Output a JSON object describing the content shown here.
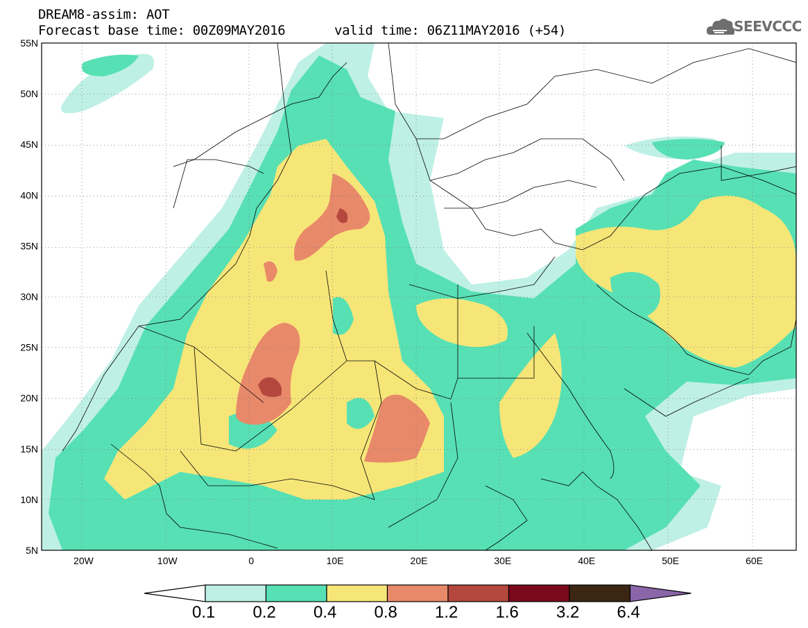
{
  "header": {
    "title": "DREAM8-assim: AOT",
    "base_time": "Forecast base time: 00Z09MAY2016",
    "valid_time": "valid time: 06Z11MAY2016 (+54)",
    "logo_text": "SEEVCCC"
  },
  "map": {
    "lat_labels": [
      "55N",
      "50N",
      "45N",
      "40N",
      "35N",
      "30N",
      "25N",
      "20N",
      "15N",
      "10N",
      "5N"
    ],
    "lon_labels": [
      "20W",
      "10W",
      "0",
      "10E",
      "20E",
      "30E",
      "40E",
      "50E",
      "60E"
    ],
    "lon_range": [
      -25,
      65
    ],
    "lat_range": [
      5,
      55
    ]
  },
  "colorbar": {
    "labels": [
      "0.1",
      "0.2",
      "0.4",
      "0.8",
      "1.2",
      "1.6",
      "3.2",
      "6.4"
    ],
    "colors": [
      "#ffffff",
      "#bff0e5",
      "#57e0b4",
      "#f6e678",
      "#e8896a",
      "#b4483e",
      "#7b0a1c",
      "#3b2614",
      "#8a66a8"
    ]
  }
}
